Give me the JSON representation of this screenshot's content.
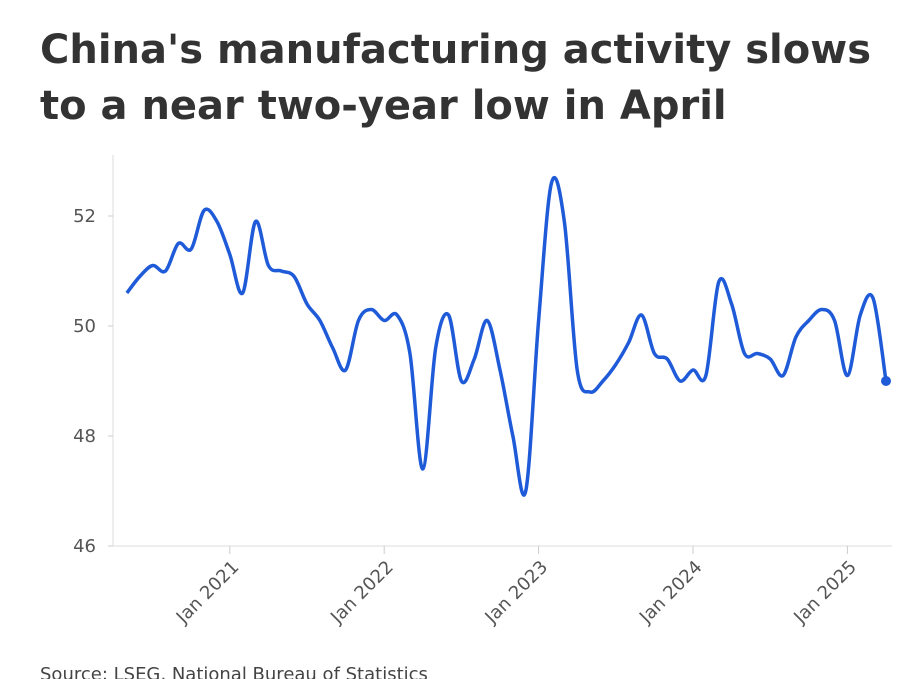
{
  "chart_data": {
    "type": "line",
    "title": "China's manufacturing activity slows to a near two-year low in April",
    "source": "Source: LSEG, National Bureau of Statistics",
    "x": [
      "2020-05",
      "2020-06",
      "2020-07",
      "2020-08",
      "2020-09",
      "2020-10",
      "2020-11",
      "2020-12",
      "2021-01",
      "2021-02",
      "2021-03",
      "2021-04",
      "2021-05",
      "2021-06",
      "2021-07",
      "2021-08",
      "2021-09",
      "2021-10",
      "2021-11",
      "2021-12",
      "2022-01",
      "2022-02",
      "2022-03",
      "2022-04",
      "2022-05",
      "2022-06",
      "2022-07",
      "2022-08",
      "2022-09",
      "2022-10",
      "2022-11",
      "2022-12",
      "2023-01",
      "2023-02",
      "2023-03",
      "2023-04",
      "2023-05",
      "2023-06",
      "2023-07",
      "2023-08",
      "2023-09",
      "2023-10",
      "2023-11",
      "2023-12",
      "2024-01",
      "2024-02",
      "2024-03",
      "2024-04",
      "2024-05",
      "2024-06",
      "2024-07",
      "2024-08",
      "2024-09",
      "2024-10",
      "2024-11",
      "2024-12",
      "2025-01",
      "2025-02",
      "2025-03",
      "2025-04"
    ],
    "series": [
      {
        "color": "#1f5bd8",
        "values": [
          50.6,
          50.9,
          51.1,
          51.0,
          51.5,
          51.4,
          52.1,
          51.9,
          51.3,
          50.6,
          51.9,
          51.1,
          51.0,
          50.9,
          50.4,
          50.1,
          49.6,
          49.2,
          50.1,
          50.3,
          50.1,
          50.2,
          49.5,
          47.4,
          49.6,
          50.2,
          49.0,
          49.4,
          50.1,
          49.2,
          48.0,
          47.0,
          50.1,
          52.6,
          51.9,
          49.2,
          48.8,
          49.0,
          49.3,
          49.7,
          50.2,
          49.5,
          49.4,
          49.0,
          49.2,
          49.1,
          50.8,
          50.4,
          49.5,
          49.5,
          49.4,
          49.1,
          49.8,
          50.1,
          50.3,
          50.1,
          49.1,
          50.2,
          50.5,
          49.0
        ]
      }
    ],
    "xlim": [
      "2020-04",
      "2025-04"
    ],
    "xticks": [
      {
        "value": "2021-01",
        "label": "Jan 2021"
      },
      {
        "value": "2022-01",
        "label": "Jan 2022"
      },
      {
        "value": "2023-01",
        "label": "Jan 2023"
      },
      {
        "value": "2024-01",
        "label": "Jan 2024"
      },
      {
        "value": "2025-01",
        "label": "Jan 2025"
      }
    ],
    "ylim": [
      46,
      53
    ],
    "yticks": [
      46,
      48,
      50,
      52
    ],
    "grid": false
  }
}
